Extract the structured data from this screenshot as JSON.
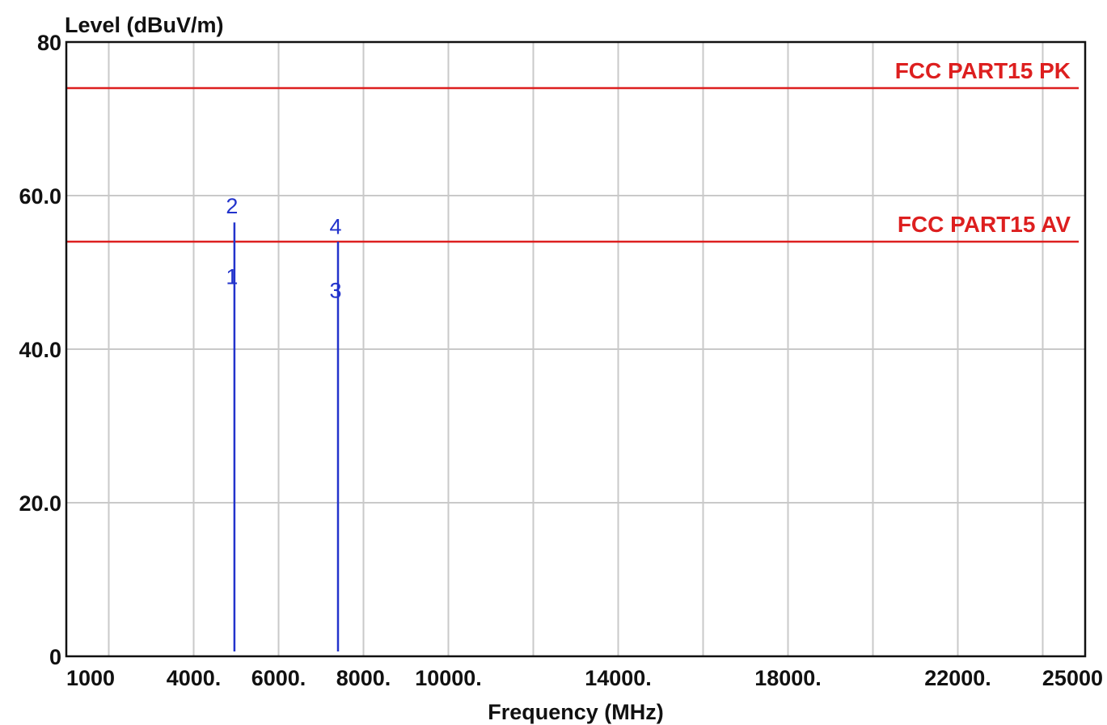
{
  "chart_data": {
    "type": "line",
    "ylabel": "Level (dBuV/m)",
    "xlabel": "Frequency (MHz)",
    "xlim": [
      1000,
      25000
    ],
    "ylim": [
      0,
      80
    ],
    "grid": true,
    "y_ticks": [
      {
        "value": 0,
        "label": "0"
      },
      {
        "value": 20,
        "label": "20.0"
      },
      {
        "value": 40,
        "label": "40.0"
      },
      {
        "value": 60,
        "label": "60.0"
      },
      {
        "value": 80,
        "label": "80"
      }
    ],
    "x_ticks": [
      {
        "value": 1000,
        "label": "1000"
      },
      {
        "value": 4000,
        "label": "4000."
      },
      {
        "value": 6000,
        "label": "6000."
      },
      {
        "value": 8000,
        "label": "8000."
      },
      {
        "value": 10000,
        "label": "10000."
      },
      {
        "value": 14000,
        "label": "14000."
      },
      {
        "value": 18000,
        "label": "18000."
      },
      {
        "value": 22000,
        "label": "22000."
      },
      {
        "value": 25000,
        "label": "25000"
      }
    ],
    "x_gridlines": [
      2000,
      4000,
      6000,
      8000,
      10000,
      12000,
      14000,
      16000,
      18000,
      20000,
      22000,
      24000
    ],
    "y_gridlines": [
      20,
      40,
      60
    ],
    "limit_lines": [
      {
        "name": "FCC PART15  PK",
        "value": 74,
        "color": "#dd1f1f"
      },
      {
        "name": "FCC PART15  AV",
        "value": 54,
        "color": "#dd1f1f"
      }
    ],
    "emissions": [
      {
        "freq": 4960,
        "level": 56.5,
        "color": "#2233cc"
      },
      {
        "freq": 7400,
        "level": 54.0,
        "color": "#2233cc"
      }
    ],
    "markers": [
      {
        "label": "1",
        "freq": 4960,
        "level": 48.5
      },
      {
        "label": "2",
        "freq": 4960,
        "level": 57.7
      },
      {
        "label": "3",
        "freq": 7400,
        "level": 46.7
      },
      {
        "label": "4",
        "freq": 7400,
        "level": 55.0
      }
    ],
    "colors": {
      "grid": "#c9c9c9",
      "frame": "#111111",
      "limit": "#dd1f1f",
      "trace": "#2233cc",
      "text": "#111111"
    }
  }
}
